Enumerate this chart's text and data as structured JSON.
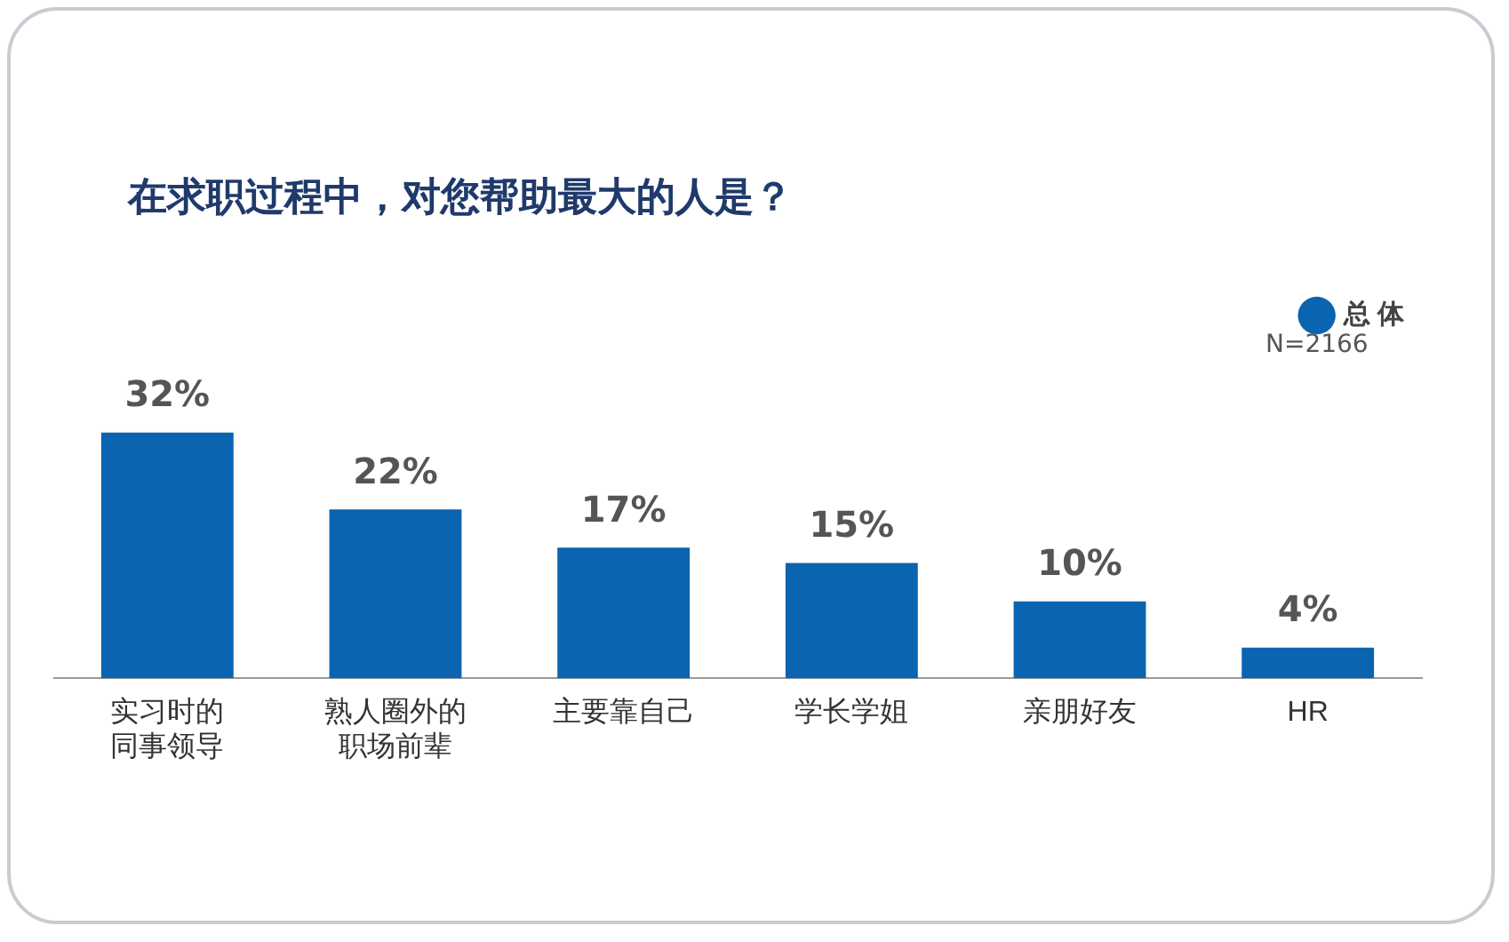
{
  "chart_data": {
    "type": "bar",
    "title": "在求职过程中，对您帮助最大的人是？",
    "categories": [
      "实习时的同事领导",
      "熟人圈外的职场前辈",
      "主要靠自己",
      "学长学姐",
      "亲朋好友",
      "HR"
    ],
    "series": [
      {
        "name": "总 体",
        "color": "#0a64b0",
        "values": [
          32,
          22,
          17,
          15,
          10,
          4
        ],
        "value_labels": [
          "32%",
          "22%",
          "17%",
          "15%",
          "10%",
          "4%"
        ]
      }
    ],
    "grid": false,
    "legend": "top right",
    "annotations": [
      "N=2166"
    ]
  }
}
